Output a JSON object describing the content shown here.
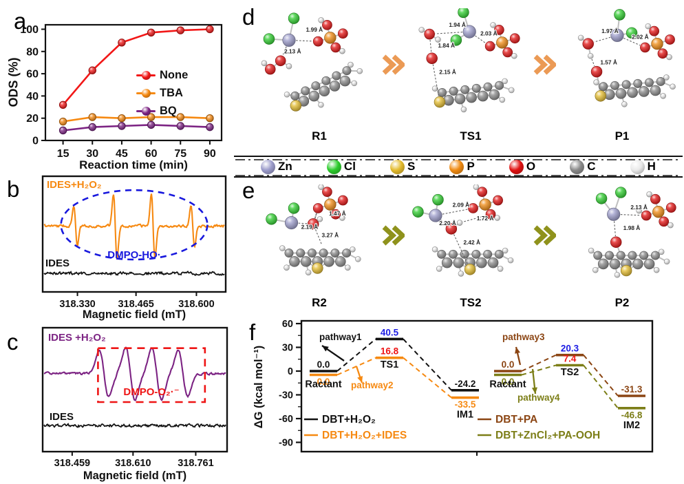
{
  "panels": {
    "a": "a",
    "b": "b",
    "c": "c",
    "d": "d",
    "e": "e",
    "f": "f"
  },
  "colors": {
    "accent_red": "#f21717",
    "accent_orange": "#f68911",
    "accent_purple": "#7c2383",
    "annotation_blue": "#1818dd",
    "annotation_red": "#ee1414",
    "brown": "#8b4513",
    "olive": "#7c7e17",
    "blue_value": "#1b1be4",
    "red_value": "#ee1414",
    "arrow_d": "#eb9a55",
    "arrow_e": "#8f921c"
  },
  "atom_legend": {
    "items": [
      {
        "symbol": "Zn",
        "color": "#9b9bca"
      },
      {
        "symbol": "Cl",
        "color": "#2ecc2e"
      },
      {
        "symbol": "S",
        "color": "#e3bb2e"
      },
      {
        "symbol": "P",
        "color": "#ef8a12"
      },
      {
        "symbol": "O",
        "color": "#e11212"
      },
      {
        "symbol": "C",
        "color": "#8a8a8a"
      },
      {
        "symbol": "H",
        "color": "#e9e9e9"
      }
    ]
  },
  "chart_data": [
    {
      "id": "a",
      "type": "line",
      "title": "",
      "x": [
        15,
        30,
        45,
        60,
        75,
        90
      ],
      "xlabel": "Reaction time (min)",
      "ylabel": "ODS (%)",
      "ylim": [
        0,
        100
      ],
      "yticks": [
        0,
        20,
        40,
        60,
        80,
        100
      ],
      "grid": false,
      "legend_position": "middle-right",
      "series": [
        {
          "name": "None",
          "color": "#f21717",
          "values": [
            32,
            63,
            88,
            97,
            99,
            100
          ]
        },
        {
          "name": "TBA",
          "color": "#f68911",
          "values": [
            17,
            21,
            20,
            21,
            21,
            20
          ]
        },
        {
          "name": "BQ",
          "color": "#7c2383",
          "values": [
            9,
            12,
            13,
            14,
            13,
            12
          ]
        }
      ]
    },
    {
      "id": "b",
      "type": "line",
      "subtype": "EPR spectrum",
      "xlabel": "Magnetic field (mT)",
      "xticks": [
        "318.330",
        "318.465",
        "318.600"
      ],
      "traces": [
        {
          "name": "IDES+H₂O₂",
          "color": "#f68911",
          "peaks_mT": [
            318.33,
            318.42,
            318.51,
            318.6
          ],
          "pattern": "1:2:2:1 quartet"
        },
        {
          "name": "IDES",
          "color": "#141414",
          "pattern": "flat noise baseline"
        }
      ],
      "annotation": {
        "text": "DMPO-HO·",
        "color": "#1818dd",
        "shape": "dashed ellipse"
      }
    },
    {
      "id": "c",
      "type": "line",
      "subtype": "EPR spectrum",
      "xlabel": "Magnetic field (mT)",
      "xticks": [
        "318.459",
        "318.610",
        "318.761"
      ],
      "traces": [
        {
          "name": "IDES +H₂O₂",
          "color": "#7c2383",
          "peaks_mT": [
            318.51,
            318.56,
            318.62,
            318.68
          ],
          "pattern": "broad sextet-like quartet"
        },
        {
          "name": "IDES",
          "color": "#141414",
          "pattern": "flat noise baseline"
        }
      ],
      "annotation": {
        "text": "DMPO-O₂·⁻",
        "color": "#ee1414",
        "shape": "dashed rectangle"
      }
    },
    {
      "id": "f",
      "type": "energy-diagram",
      "ylabel": "ΔG (kcal mol⁻¹)",
      "yticks": [
        60,
        30,
        0,
        -30,
        -60,
        -90
      ],
      "ylim": [
        -90,
        60
      ],
      "groups": [
        {
          "stations": [
            "Ractant",
            "TS1",
            "IM1"
          ],
          "series": [
            {
              "name": "DBT+H₂O₂",
              "color": "#111111",
              "values": [
                0.0,
                40.5,
                -24.2
              ],
              "value_labels": [
                "0.0",
                "40.5",
                "-24.2"
              ],
              "value_label_colors": [
                "#111111",
                "#1b1be4",
                "#111111"
              ]
            },
            {
              "name": "DBT+H₂O₂+IDES",
              "color": "#f68911",
              "values": [
                0.0,
                16.8,
                -33.5
              ],
              "value_labels": [
                "0.0",
                "16.8",
                "-33.5"
              ],
              "value_label_colors": [
                "#f68911",
                "#ee1414",
                "#f68911"
              ]
            }
          ],
          "pathways": [
            {
              "label": "pathway1",
              "color": "#111111"
            },
            {
              "label": "pathway2",
              "color": "#f68911"
            }
          ]
        },
        {
          "stations": [
            "Ractant",
            "TS2",
            "IM2"
          ],
          "series": [
            {
              "name": "DBT+PA",
              "color": "#8b4513",
              "values": [
                0.0,
                20.3,
                -31.3
              ],
              "value_labels": [
                "0.0",
                "20.3",
                "-31.3"
              ],
              "value_label_colors": [
                "#8b4513",
                "#1b1be4",
                "#8b4513"
              ]
            },
            {
              "name": "DBT+ZnCl₂+PA-OOH",
              "color": "#7c7e17",
              "values": [
                0.0,
                7.4,
                -46.8
              ],
              "value_labels": [
                "0.0",
                "7.4",
                "-46.8"
              ],
              "value_label_colors": [
                "#7c7e17",
                "#ee1414",
                "#7c7e17"
              ]
            }
          ],
          "pathways": [
            {
              "label": "pathway3",
              "color": "#8b4513"
            },
            {
              "label": "pathway4",
              "color": "#7c7e17"
            }
          ]
        }
      ]
    }
  ],
  "panel_d": {
    "arrow_color": "#eb9a55",
    "structures": [
      {
        "name": "R1",
        "distances": [
          "1.99 Å",
          "2.13 Å"
        ]
      },
      {
        "name": "TS1",
        "distances": [
          "1.94 Å",
          "2.03 Å",
          "1.84 Å",
          "2.15 Å"
        ]
      },
      {
        "name": "P1",
        "distances": [
          "1.97 Å",
          "2.02 Å",
          "1.57 Å"
        ]
      }
    ]
  },
  "panel_e": {
    "arrow_color": "#8f921c",
    "structures": [
      {
        "name": "R2",
        "distances": [
          "1.47 Å",
          "2.19 Å",
          "3.27 Å"
        ]
      },
      {
        "name": "TS2",
        "distances": [
          "2.09 Å",
          "2.20 Å",
          "1.72 Å",
          "2.42 Å"
        ]
      },
      {
        "name": "P2",
        "distances": [
          "2.13 Å",
          "1.98 Å"
        ]
      }
    ]
  }
}
